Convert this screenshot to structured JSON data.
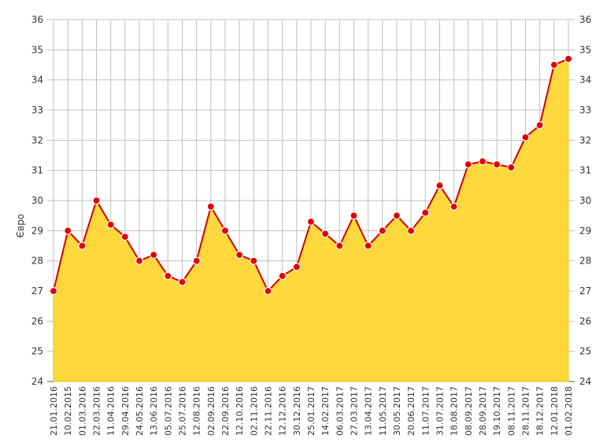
{
  "chart_data": {
    "type": "area",
    "title": "",
    "xlabel": "",
    "ylabel": "Євро",
    "ylim": [
      24,
      36
    ],
    "yticks": [
      24,
      25,
      26,
      27,
      28,
      29,
      30,
      31,
      32,
      33,
      34,
      35,
      36
    ],
    "grid": true,
    "colors": {
      "fill": "#ffd83d",
      "fill_edge": "#f2c200",
      "line": "#d40000",
      "marker": "#e00000",
      "marker_edge": "#ffffff",
      "grid": "#bfbfbf",
      "axis": "#555555"
    },
    "xtick_labels": [
      "21.01.2016",
      "10.02.2015",
      "01.03.2016",
      "22.03.2016",
      "11.04.2016",
      "29.04.2016",
      "24.05.2016",
      "13.06.2016",
      "05.07.2016",
      "25.07.2016",
      "12.08.2016",
      "02.09.2016",
      "22.09.2016",
      "12.10.2016",
      "02.11.2016",
      "22.11.2016",
      "12.12.2016",
      "30.12.2016",
      "25.01.2017",
      "14.02.2017",
      "06.03.2017",
      "27.03.2017",
      "13.04.2017",
      "11.05.2017",
      "30.05.2017",
      "20.06.2017",
      "11.07.2017",
      "31.07.2017",
      "18.08.2017",
      "08.09.2017",
      "28.09.2017",
      "19.10.2017",
      "08.11.2017",
      "28.11.2017",
      "18.12.2017",
      "12.01.2018",
      "01.02.2018"
    ],
    "x": [
      "21.01.2016",
      "10.02.2015",
      "01.03.2016",
      "22.03.2016",
      "11.04.2016",
      "29.04.2016",
      "24.05.2016",
      "13.06.2016",
      "05.07.2016",
      "25.07.2016",
      "12.08.2016",
      "02.09.2016",
      "22.09.2016",
      "12.10.2016",
      "02.11.2016",
      "22.11.2016",
      "12.12.2016",
      "30.12.2016",
      "25.01.2017",
      "14.02.2017",
      "06.03.2017",
      "27.03.2017",
      "13.04.2017",
      "11.05.2017",
      "30.05.2017",
      "20.06.2017",
      "11.07.2017",
      "31.07.2017",
      "18.08.2017",
      "08.09.2017",
      "28.09.2017",
      "19.10.2017",
      "08.11.2017",
      "28.11.2017",
      "18.12.2017",
      "12.01.2018",
      "01.02.2018"
    ],
    "values": [
      27.0,
      29.0,
      28.5,
      30.0,
      29.2,
      28.8,
      28.0,
      28.2,
      27.5,
      27.3,
      28.0,
      29.8,
      29.0,
      28.2,
      28.0,
      27.0,
      27.5,
      27.8,
      29.3,
      28.9,
      28.5,
      29.5,
      28.5,
      29.0,
      29.5,
      29.0,
      29.6,
      30.5,
      29.8,
      31.2,
      31.3,
      31.2,
      31.1,
      32.1,
      32.5,
      34.5,
      34.7
    ]
  }
}
